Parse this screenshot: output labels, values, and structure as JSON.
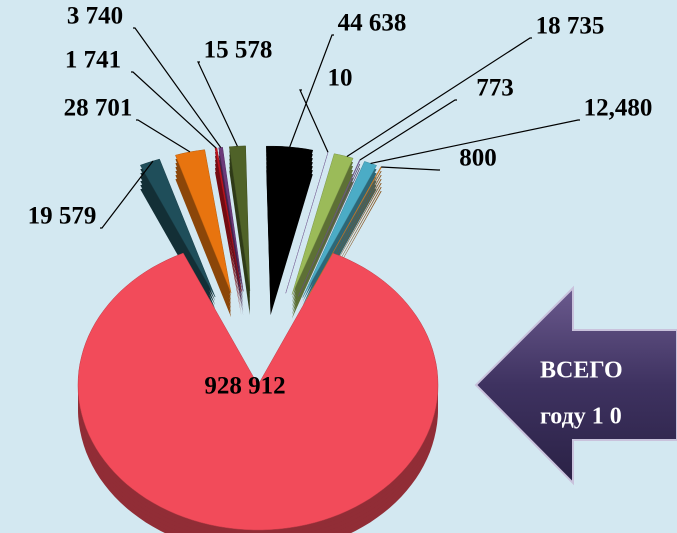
{
  "chart_data": {
    "type": "pie",
    "values": [
      928912,
      19579,
      28701,
      1741,
      3740,
      15578,
      44638,
      10,
      18735,
      773,
      12480,
      800
    ],
    "value_labels": [
      "928 912",
      "19 579",
      "28 701",
      "1 741",
      "3 740",
      "15 578",
      "44 638",
      "10",
      "18 735",
      "773",
      "12,480",
      "800"
    ],
    "colors": [
      "#f24b5a",
      "#1f4e5a",
      "#e8740f",
      "#c0141e",
      "#6b3a7a",
      "#4f6228",
      "#000000",
      "#9b7fc0",
      "#9bbb59",
      "#8064a2",
      "#4bacc6",
      "#e3892c"
    ],
    "annotations": [
      "ВСЕГО",
      "году  1 0"
    ]
  }
}
